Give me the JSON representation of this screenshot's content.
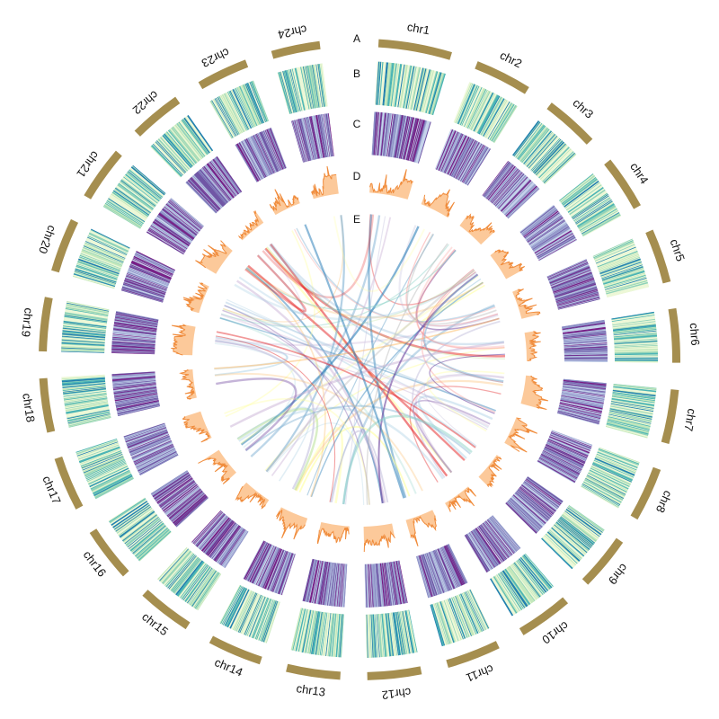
{
  "chart_data": {
    "type": "circos",
    "chromosomes": [
      "chr1",
      "chr2",
      "chr3",
      "chr4",
      "chr5",
      "chr6",
      "chr7",
      "chr8",
      "chr9",
      "chr10",
      "chr11",
      "chr12",
      "chr13",
      "chr14",
      "chr15",
      "chr16",
      "chr17",
      "chr18",
      "chr19",
      "chr20",
      "chr21",
      "chr22",
      "chr23",
      "chr24"
    ],
    "chromosome_weights": [
      1.36,
      1.05,
      1.0,
      1.0,
      1.0,
      1.0,
      1.0,
      1.0,
      1.0,
      1.0,
      1.0,
      1.0,
      1.0,
      1.0,
      1.0,
      1.0,
      1.0,
      1.0,
      1.0,
      1.0,
      1.0,
      0.97,
      0.95,
      0.9
    ],
    "tracks": [
      {
        "label": "A",
        "kind": "ideogram"
      },
      {
        "label": "B",
        "kind": "heatmap",
        "palette": "green-teal"
      },
      {
        "label": "C",
        "kind": "heatmap",
        "palette": "purple"
      },
      {
        "label": "D",
        "kind": "area",
        "palette": "orange"
      },
      {
        "label": "E",
        "kind": "links"
      }
    ],
    "colors": {
      "ideogram": "#a58e4f",
      "heat_b": [
        "#eef8d8",
        "#c4e8bc",
        "#8fd2ba",
        "#48b3b5",
        "#1e7eb0"
      ],
      "heat_c": [
        "#c7d6ec",
        "#9fa6d2",
        "#8a8cc4",
        "#6e52a3",
        "#771983"
      ],
      "area_fill": "#fcc99a",
      "area_line": "#f08c3c",
      "links": [
        "#a6cee3",
        "#b2df8a",
        "#fb9a99",
        "#fdbf6f",
        "#cab2d6",
        "#ffff99",
        "#8dd3c7",
        "#bebada",
        "#80b1d3",
        "#b3b3b3",
        "#1f78b4",
        "#6a3d9a",
        "#e31a1c"
      ]
    },
    "link_count": 90
  }
}
